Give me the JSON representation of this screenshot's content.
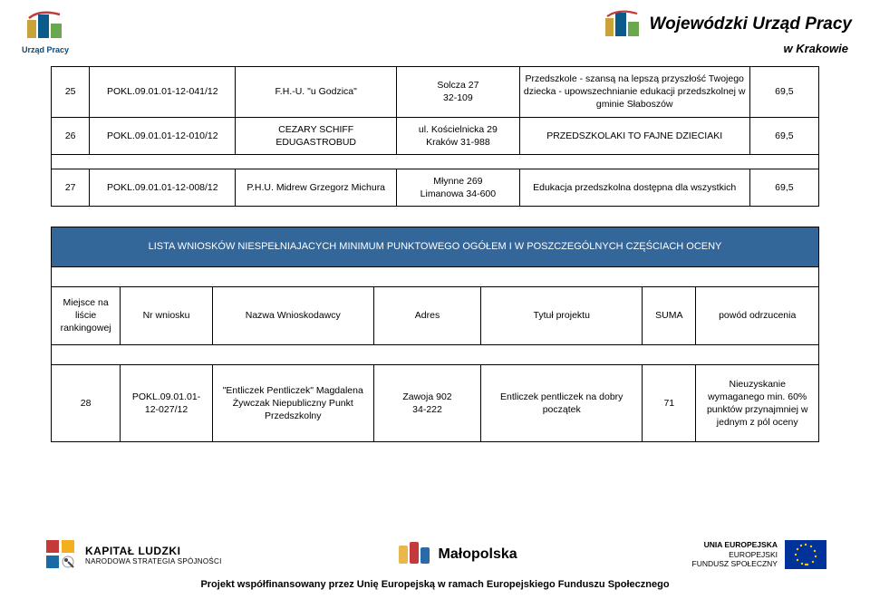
{
  "header": {
    "left_label": "Urząd Pracy",
    "right_title": "Wojewódzki Urząd Pracy",
    "right_sub": "w Krakowie"
  },
  "table1": {
    "rows": [
      {
        "num": "25",
        "code": "POKL.09.01.01-12-041/12",
        "name": "F.H.-U. \"u Godzica\"",
        "addr": "Solcza 27\n32-109",
        "title": "Przedszkole - szansą na lepszą przyszłość Twojego dziecka - upowszechnianie edukacji przedszkolnej w gminie Słaboszów",
        "score": "69,5"
      },
      {
        "num": "26",
        "code": "POKL.09.01.01-12-010/12",
        "name": "CEZARY SCHIFF EDUGASTROBUD",
        "addr": "ul. Kościelnicka 29\nKraków 31-988",
        "title": "PRZEDSZKOLAKI TO FAJNE DZIECIAKI",
        "score": "69,5"
      },
      {
        "num": "27",
        "code": "POKL.09.01.01-12-008/12",
        "name": "P.H.U. Midrew Grzegorz Michura",
        "addr": "Młynne 269\nLimanowa 34-600",
        "title": "Edukacja przedszkolna dostępna dla wszystkich",
        "score": "69,5"
      }
    ]
  },
  "banner": "LISTA WNIOSKÓW NIESPEŁNIAJACYCH MINIMUM PUNKTOWEGO OGÓŁEM I W POSZCZEGÓLNYCH CZĘŚCIACH OCENY",
  "table2": {
    "headers": [
      "Miejsce na liście rankingowej",
      "Nr wniosku",
      "Nazwa Wnioskodawcy",
      "Adres",
      "Tytuł projektu",
      "SUMA",
      "powód odrzucenia"
    ],
    "rows": [
      {
        "num": "28",
        "code": "POKL.09.01.01-\n12-027/12",
        "name": "\"Entliczek Pentliczek\" Magdalena Żywczak Niepubliczny Punkt Przedszkolny",
        "addr": "Zawoja 902\n34-222",
        "title": "Entliczek pentliczek na dobry początek",
        "score": "71",
        "reason": "Nieuzyskanie wymaganego min. 60% punktów przynajmniej w jednym z pól oceny"
      }
    ]
  },
  "footer": {
    "kapital1": "KAPITAŁ LUDZKI",
    "kapital2": "NARODOWA STRATEGIA SPÓJNOŚCI",
    "malopolska": "Małopolska",
    "eu1": "UNIA EUROPEJSKA",
    "eu2": "EUROPEJSKI",
    "eu3": "FUNDUSZ SPOŁECZNY",
    "text": "Projekt współfinansowany przez Unię Europejską w ramach Europejskiego Funduszu Społecznego"
  },
  "colors": {
    "banner_bg": "#336699",
    "banner_fg": "#ffffff",
    "border": "#000000",
    "eu_flag": "#003399",
    "star": "#ffcc00",
    "logo_blue": "#0a5a8a",
    "logo_ochre": "#c9a23a",
    "mp_orange": "#e28a2b",
    "mp_red": "#c43a3a",
    "mp_blue": "#2a6aa8"
  }
}
